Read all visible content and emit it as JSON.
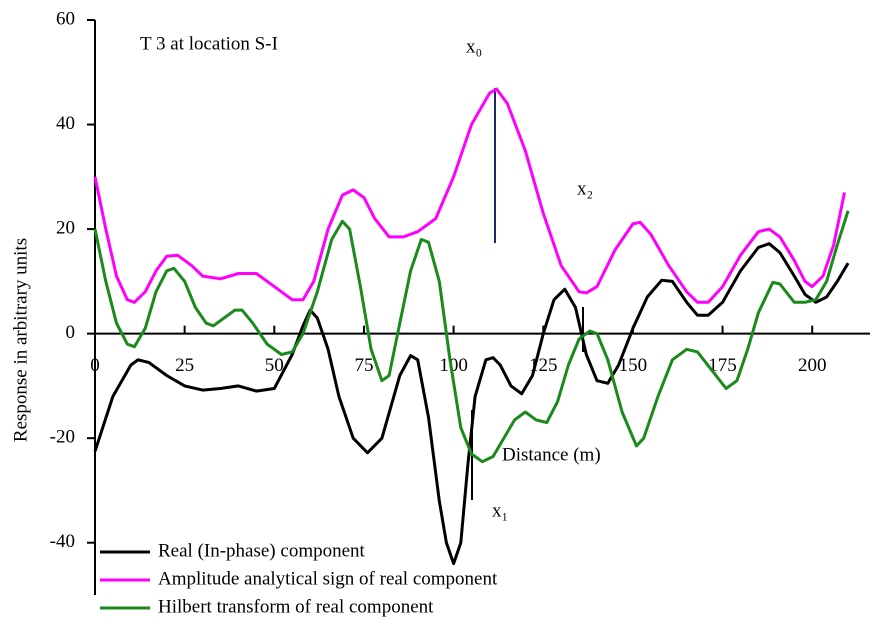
{
  "chart_data": {
    "type": "line",
    "annotations": [
      "T 3 at location S-I",
      "x₀",
      "x₁",
      "x₂"
    ],
    "x_label": "Distance (m)",
    "y_label": "Response in arbitrary units",
    "xlim": [
      0,
      215
    ],
    "xticks": [
      0,
      25,
      50,
      75,
      100,
      125,
      150,
      175,
      200
    ],
    "ylim": [
      -50,
      60
    ],
    "yticks": [
      60,
      40,
      20,
      0,
      -20,
      -40
    ],
    "series": [
      {
        "name": "Real (In-phase) component",
        "color": "#000000",
        "x": [
          0,
          5,
          10,
          12,
          15,
          20,
          25,
          30,
          35,
          40,
          45,
          50,
          55,
          58,
          60,
          62,
          65,
          68,
          72,
          76,
          80,
          85,
          88,
          90,
          93,
          96,
          98,
          100,
          102,
          104,
          106,
          109,
          111,
          113,
          116,
          119,
          122,
          125,
          128,
          131,
          134,
          137,
          140,
          143,
          146,
          150,
          154,
          158,
          161,
          165,
          168,
          171,
          175,
          180,
          185,
          188,
          191,
          195,
          198,
          201,
          204,
          207,
          210
        ],
        "values": [
          -22.5,
          -12,
          -6,
          -5,
          -5.5,
          -8,
          -10,
          -10.8,
          -10.5,
          -10,
          -11,
          -10.5,
          -4,
          1.5,
          4.5,
          3,
          -3,
          -12,
          -20,
          -22.8,
          -20,
          -8,
          -4.2,
          -5,
          -16,
          -32,
          -40,
          -44,
          -40,
          -25,
          -12,
          -5,
          -4.6,
          -6,
          -10,
          -11.5,
          -8,
          0,
          6.5,
          8.5,
          5,
          -4,
          -9,
          -9.5,
          -6,
          1,
          7,
          10.2,
          10,
          6,
          3.5,
          3.5,
          6,
          12,
          16.5,
          17.2,
          15.5,
          11,
          7.5,
          6,
          7,
          10,
          13.5
        ]
      },
      {
        "name": "Amplitude analytical sign of real component",
        "color": "#ff00ff",
        "x": [
          0,
          3,
          6,
          9,
          11,
          14,
          17,
          20,
          23,
          27,
          30,
          35,
          40,
          45,
          50,
          55,
          58,
          61,
          65,
          69,
          72,
          75,
          78,
          82,
          86,
          90,
          95,
          100,
          105,
          110,
          112,
          115,
          120,
          125,
          130,
          135,
          137,
          140,
          145,
          150,
          152,
          155,
          160,
          165,
          168,
          171,
          175,
          180,
          185,
          188,
          191,
          195,
          198,
          200,
          203,
          206,
          209
        ],
        "values": [
          30,
          20,
          11,
          6.5,
          6,
          8,
          12,
          14.8,
          15,
          13,
          11,
          10.5,
          11.5,
          11.5,
          9,
          6.5,
          6.5,
          10,
          20,
          26.5,
          27.5,
          26,
          22,
          18.5,
          18.5,
          19.5,
          22,
          30,
          40,
          46,
          46.8,
          44,
          35,
          23,
          13,
          8,
          7.8,
          9,
          16,
          21,
          21.3,
          19,
          13,
          8,
          6,
          6,
          9,
          15,
          19.5,
          20,
          18.5,
          14,
          10,
          9,
          11,
          17,
          27
        ]
      },
      {
        "name": "Hilbert transform of real component",
        "color": "#1a8a1a",
        "x": [
          0,
          3,
          6,
          9,
          11,
          14,
          17,
          20,
          22,
          25,
          28,
          31,
          33,
          36,
          39,
          41,
          44,
          48,
          52,
          55,
          58,
          62,
          66,
          69,
          71,
          74,
          77,
          80,
          82,
          85,
          88,
          91,
          93,
          96,
          99,
          102,
          105,
          108,
          111,
          114,
          117,
          120,
          123,
          126,
          129,
          132,
          135,
          138,
          140,
          143,
          147,
          151,
          153,
          157,
          161,
          165,
          168,
          172,
          176,
          179,
          182,
          185,
          189,
          191,
          195,
          198,
          201,
          204,
          207,
          210
        ],
        "values": [
          20,
          10,
          2,
          -2,
          -2.5,
          1,
          8,
          12,
          12.5,
          10,
          5,
          2,
          1.5,
          3,
          4.5,
          4.5,
          2,
          -2,
          -4,
          -3.5,
          0,
          8,
          18,
          21.5,
          20,
          9,
          -3,
          -9,
          -8,
          2,
          12,
          18,
          17.5,
          10,
          -5,
          -18,
          -23,
          -24.5,
          -23.5,
          -20,
          -16.5,
          -15,
          -16.5,
          -17,
          -13,
          -6,
          -1,
          0.5,
          0,
          -5,
          -15,
          -21.5,
          -20,
          -12,
          -5,
          -3,
          -3.5,
          -7,
          -10.5,
          -9,
          -3,
          4,
          9.8,
          9.5,
          6,
          6,
          6.5,
          10,
          17,
          23.5
        ]
      }
    ]
  }
}
